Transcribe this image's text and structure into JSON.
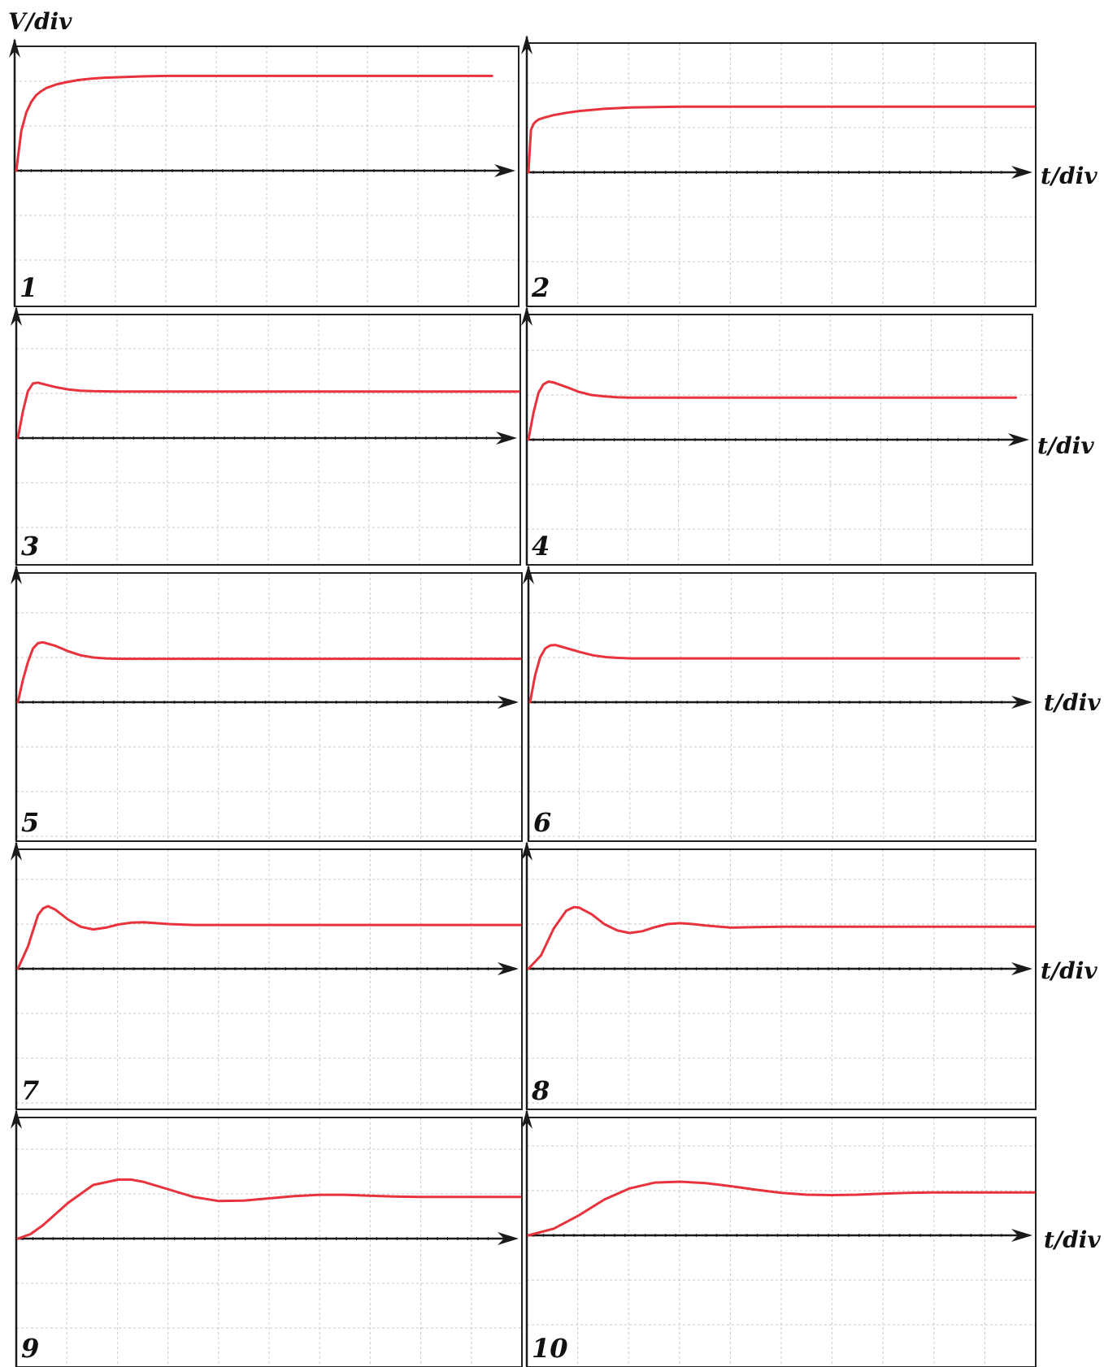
{
  "y_axis_label": "V/div",
  "x_axis_label": "t/div",
  "colors": {
    "trace": "#e8323c",
    "axis": "#1a1a1a",
    "grid": "#c8c8c8",
    "frame": "#222222"
  },
  "chart_data": [
    {
      "type": "line",
      "panel": "1",
      "grid": true,
      "xlim": [
        0,
        10
      ],
      "ylim": [
        -3,
        3
      ],
      "x": [
        0,
        0.1,
        0.2,
        0.3,
        0.4,
        0.5,
        0.6,
        0.8,
        1.0,
        1.25,
        1.5,
        1.75,
        2.0,
        2.5,
        3.0,
        3.5,
        4.0,
        5.0,
        6.0,
        7.0,
        8.0,
        9.0,
        9.5
      ],
      "y": [
        0,
        0.89,
        1.3,
        1.54,
        1.69,
        1.78,
        1.85,
        1.93,
        1.98,
        2.03,
        2.06,
        2.08,
        2.09,
        2.11,
        2.12,
        2.12,
        2.12,
        2.12,
        2.12,
        2.12,
        2.12,
        2.12,
        2.12
      ]
    },
    {
      "type": "line",
      "panel": "2",
      "grid": true,
      "xlim": [
        0,
        10
      ],
      "ylim": [
        -3,
        3
      ],
      "x": [
        0,
        0.05,
        0.1,
        0.15,
        0.2,
        0.3,
        0.5,
        0.75,
        1.0,
        1.5,
        2.0,
        2.5,
        3.0,
        3.5,
        4.0,
        5.0,
        6.0,
        7.0,
        8.0,
        9.0,
        10.0
      ],
      "y": [
        0,
        0.95,
        1.08,
        1.14,
        1.18,
        1.22,
        1.28,
        1.33,
        1.37,
        1.42,
        1.45,
        1.46,
        1.47,
        1.47,
        1.47,
        1.47,
        1.47,
        1.47,
        1.47,
        1.47,
        1.47
      ]
    },
    {
      "type": "line",
      "panel": "3",
      "grid": true,
      "xlim": [
        0,
        10
      ],
      "ylim": [
        -3,
        3
      ],
      "x": [
        0,
        0.1,
        0.2,
        0.3,
        0.4,
        0.5,
        0.75,
        1.0,
        1.25,
        1.5,
        2.0,
        2.5,
        3.0,
        4.0,
        5.0,
        6.0,
        7.0,
        8.0,
        9.0,
        10.0
      ],
      "y": [
        0,
        0.6,
        1.05,
        1.22,
        1.24,
        1.21,
        1.14,
        1.09,
        1.06,
        1.05,
        1.04,
        1.04,
        1.04,
        1.04,
        1.04,
        1.04,
        1.04,
        1.04,
        1.04,
        1.04
      ]
    },
    {
      "type": "line",
      "panel": "4",
      "grid": true,
      "xlim": [
        0,
        10
      ],
      "ylim": [
        -3,
        3
      ],
      "x": [
        0,
        0.1,
        0.2,
        0.3,
        0.4,
        0.5,
        0.6,
        0.8,
        1.0,
        1.25,
        1.5,
        1.75,
        2.0,
        2.5,
        3.0,
        4.0,
        5.0,
        6.0,
        7.0,
        8.0,
        9.0,
        9.7
      ],
      "y": [
        0,
        0.6,
        1.05,
        1.24,
        1.3,
        1.28,
        1.24,
        1.16,
        1.07,
        1.0,
        0.97,
        0.95,
        0.94,
        0.94,
        0.94,
        0.94,
        0.94,
        0.94,
        0.94,
        0.94,
        0.94,
        0.94
      ]
    },
    {
      "type": "line",
      "panel": "5",
      "grid": true,
      "xlim": [
        0,
        10
      ],
      "ylim": [
        -3,
        3
      ],
      "x": [
        0,
        0.1,
        0.2,
        0.3,
        0.4,
        0.5,
        0.75,
        1.0,
        1.25,
        1.5,
        1.75,
        2.0,
        2.5,
        3.0,
        4.0,
        5.0,
        6.0,
        7.0,
        8.0,
        9.0,
        10.0
      ],
      "y": [
        0,
        0.5,
        0.9,
        1.2,
        1.32,
        1.34,
        1.26,
        1.14,
        1.05,
        1.0,
        0.98,
        0.97,
        0.97,
        0.97,
        0.97,
        0.97,
        0.97,
        0.97,
        0.97,
        0.97,
        0.97
      ]
    },
    {
      "type": "line",
      "panel": "6",
      "grid": true,
      "xlim": [
        0,
        10
      ],
      "ylim": [
        -3,
        3
      ],
      "x": [
        0,
        0.1,
        0.2,
        0.3,
        0.4,
        0.5,
        0.75,
        1.0,
        1.25,
        1.5,
        1.75,
        2.0,
        2.5,
        3.0,
        4.0,
        5.0,
        6.0,
        7.0,
        8.0,
        9.0,
        9.7
      ],
      "y": [
        0,
        0.6,
        1.0,
        1.2,
        1.27,
        1.28,
        1.2,
        1.12,
        1.05,
        1.01,
        0.99,
        0.98,
        0.98,
        0.98,
        0.98,
        0.98,
        0.98,
        0.98,
        0.98,
        0.98,
        0.98
      ]
    },
    {
      "type": "line",
      "panel": "7",
      "grid": true,
      "xlim": [
        0,
        10
      ],
      "ylim": [
        -3,
        3
      ],
      "x": [
        0,
        0.2,
        0.4,
        0.5,
        0.6,
        0.75,
        1.0,
        1.25,
        1.5,
        1.75,
        2.0,
        2.25,
        2.5,
        2.75,
        3.0,
        3.5,
        4.0,
        5.0,
        6.0,
        7.0,
        8.0,
        9.0,
        10.0
      ],
      "y": [
        0,
        0.5,
        1.2,
        1.35,
        1.4,
        1.32,
        1.1,
        0.94,
        0.88,
        0.92,
        0.99,
        1.03,
        1.04,
        1.02,
        1.0,
        0.98,
        0.98,
        0.98,
        0.98,
        0.98,
        0.98,
        0.98,
        0.98
      ]
    },
    {
      "type": "line",
      "panel": "8",
      "grid": true,
      "xlim": [
        0,
        10
      ],
      "ylim": [
        -3,
        3
      ],
      "x": [
        0,
        0.25,
        0.5,
        0.75,
        0.9,
        1.0,
        1.25,
        1.5,
        1.75,
        2.0,
        2.25,
        2.5,
        2.75,
        3.0,
        3.25,
        3.5,
        4.0,
        4.5,
        5.0,
        6.0,
        7.0,
        8.0,
        9.0,
        10.0
      ],
      "y": [
        0,
        0.3,
        0.9,
        1.3,
        1.38,
        1.37,
        1.22,
        1.0,
        0.86,
        0.8,
        0.84,
        0.93,
        1.0,
        1.02,
        1.0,
        0.97,
        0.92,
        0.93,
        0.94,
        0.94,
        0.94,
        0.94,
        0.94,
        0.94
      ]
    },
    {
      "type": "line",
      "panel": "9",
      "grid": true,
      "xlim": [
        0,
        10
      ],
      "ylim": [
        -3,
        3
      ],
      "x": [
        0,
        0.25,
        0.5,
        1.0,
        1.5,
        2.0,
        2.25,
        2.5,
        3.0,
        3.5,
        4.0,
        4.5,
        5.0,
        5.5,
        6.0,
        6.5,
        7.0,
        7.5,
        8.0,
        9.0,
        10.0
      ],
      "y": [
        0,
        0.1,
        0.3,
        0.8,
        1.2,
        1.32,
        1.32,
        1.27,
        1.1,
        0.93,
        0.84,
        0.85,
        0.9,
        0.95,
        0.98,
        0.98,
        0.96,
        0.94,
        0.93,
        0.93,
        0.93
      ]
    },
    {
      "type": "line",
      "panel": "10",
      "grid": true,
      "xlim": [
        0,
        10
      ],
      "ylim": [
        -3,
        3
      ],
      "x": [
        0,
        0.5,
        1.0,
        1.5,
        2.0,
        2.5,
        3.0,
        3.5,
        4.0,
        4.5,
        5.0,
        5.5,
        6.0,
        6.5,
        7.0,
        7.5,
        8.0,
        8.5,
        9.0,
        10.0
      ],
      "y": [
        0,
        0.15,
        0.45,
        0.8,
        1.05,
        1.18,
        1.2,
        1.17,
        1.1,
        1.02,
        0.95,
        0.91,
        0.9,
        0.91,
        0.93,
        0.95,
        0.96,
        0.96,
        0.96,
        0.96
      ]
    }
  ],
  "panel_labels": [
    "1",
    "2",
    "3",
    "4",
    "5",
    "6",
    "7",
    "8",
    "9",
    "10"
  ]
}
